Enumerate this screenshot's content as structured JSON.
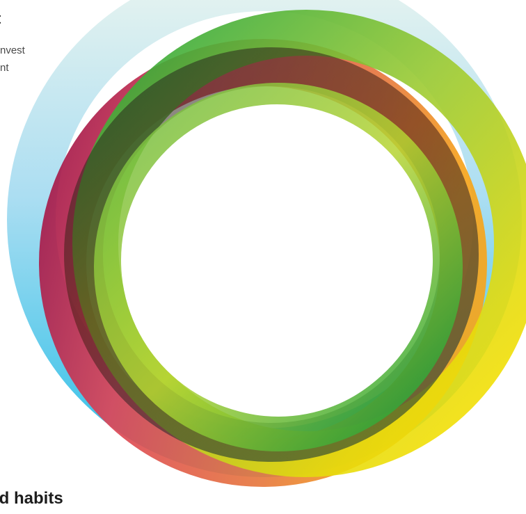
{
  "intro": {
    "heading_tail": "t",
    "line_1": "nvest",
    "line_2": "nt"
  },
  "footer": {
    "heading": "ld habits"
  },
  "graphic": {
    "name": "interlocking-rings-logo",
    "rings": [
      {
        "name": "sky-blue-ring",
        "colors": [
          "#dcefee",
          "#8fd3f0",
          "#2bbfe6"
        ]
      },
      {
        "name": "crimson-coral-ring",
        "colors": [
          "#a61145",
          "#e04b5a",
          "#f0a02a"
        ]
      },
      {
        "name": "yellow-green-ring",
        "colors": [
          "#2eaa3c",
          "#a8cf2e",
          "#ffe000"
        ]
      },
      {
        "name": "lime-green-ring",
        "colors": [
          "#7bc043",
          "#c3d631",
          "#14a03c"
        ]
      },
      {
        "name": "dark-shadow-ring",
        "colors": [
          "#0d1f2b",
          "#1c3a1f",
          "#5a1a0a"
        ]
      }
    ]
  }
}
